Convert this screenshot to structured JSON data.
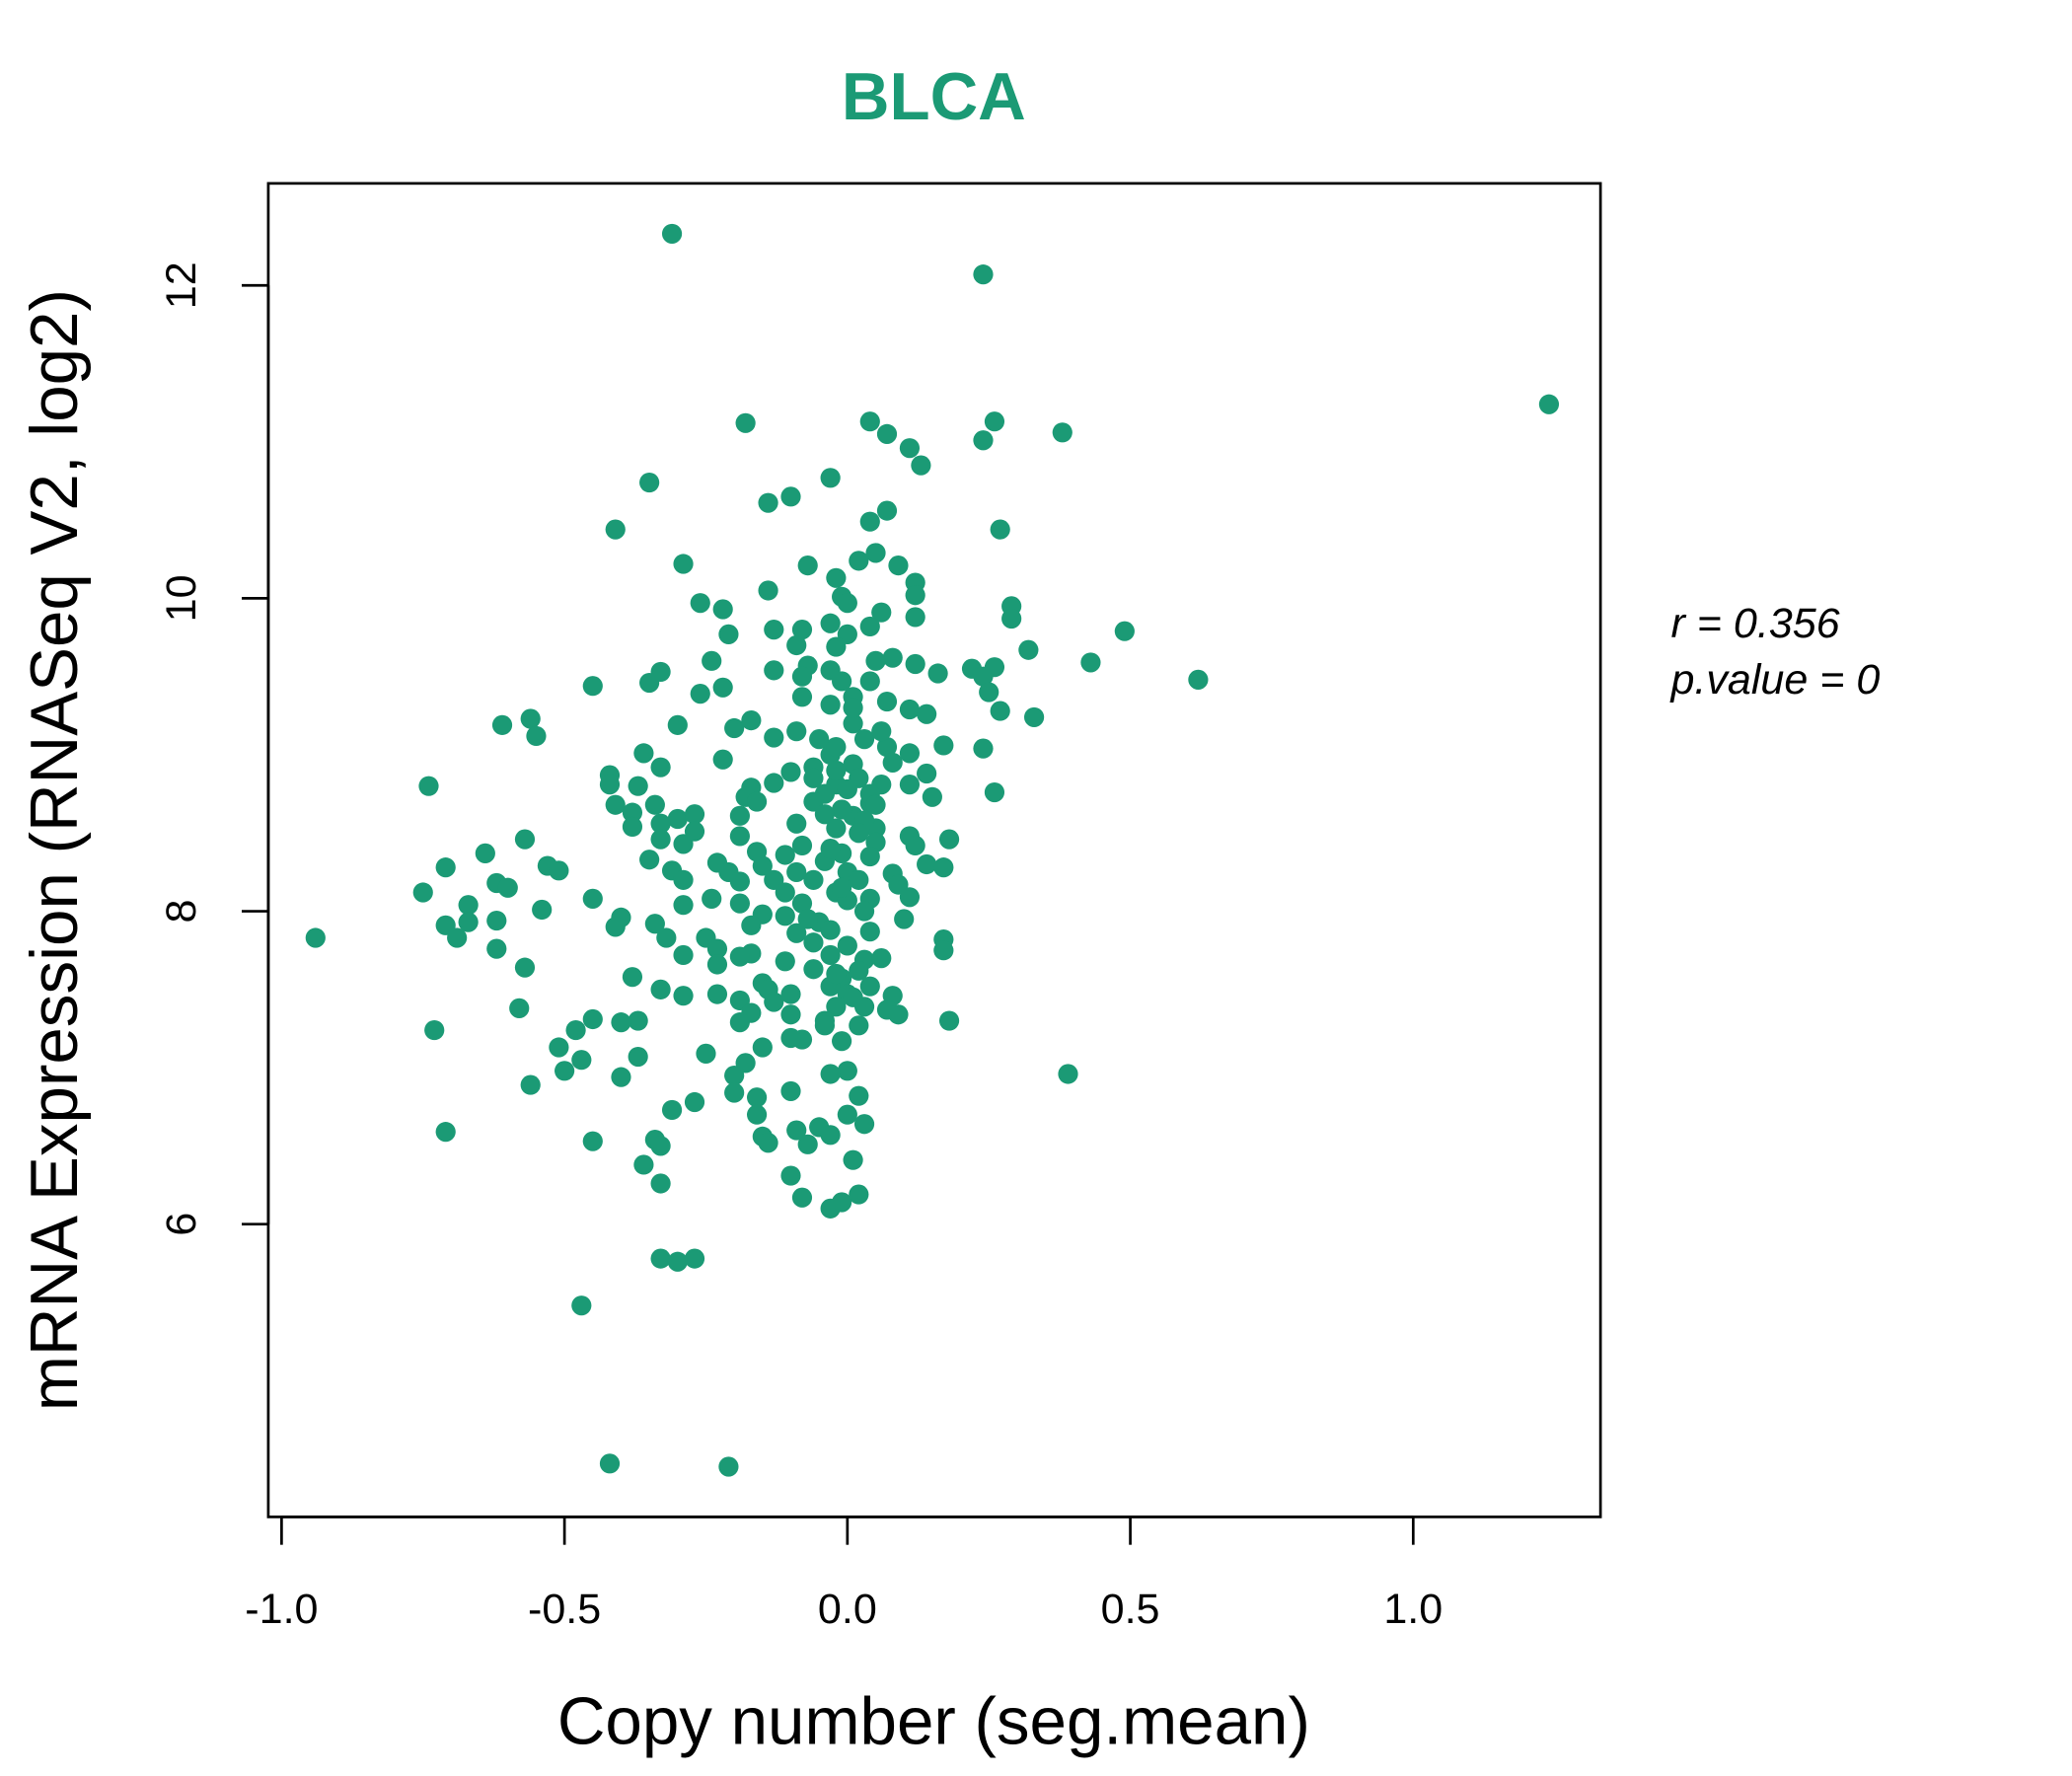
{
  "chart_data": {
    "type": "scatter",
    "title": "BLCA",
    "xlabel": "Copy number (seg.mean)",
    "ylabel": "mRNA Expression (RNASeq V2, log2)",
    "xlim": [
      -1.02,
      1.33
    ],
    "ylim": [
      4.3,
      12.65
    ],
    "xticks": [
      -1.0,
      -0.5,
      0.0,
      0.5,
      1.0
    ],
    "xtick_labels": [
      "-1.0",
      "-0.5",
      "0.0",
      "0.5",
      "1.0"
    ],
    "yticks": [
      6,
      8,
      10,
      12
    ],
    "ytick_labels": [
      "6",
      "8",
      "10",
      "12"
    ],
    "grid": false,
    "color": "#1b9a75",
    "annotation": {
      "r": "r = 0.356",
      "p": "p.value = 0"
    },
    "points": [
      [
        -0.31,
        12.33
      ],
      [
        0.24,
        12.07
      ],
      [
        1.24,
        11.24
      ],
      [
        -0.18,
        11.12
      ],
      [
        0.04,
        11.13
      ],
      [
        0.07,
        11.05
      ],
      [
        0.26,
        11.13
      ],
      [
        0.24,
        11.01
      ],
      [
        0.38,
        11.06
      ],
      [
        0.11,
        10.96
      ],
      [
        0.13,
        10.85
      ],
      [
        -0.35,
        10.74
      ],
      [
        -0.03,
        10.77
      ],
      [
        -0.1,
        10.65
      ],
      [
        -0.14,
        10.61
      ],
      [
        0.07,
        10.56
      ],
      [
        0.04,
        10.49
      ],
      [
        -0.41,
        10.44
      ],
      [
        0.27,
        10.44
      ],
      [
        0.05,
        10.29
      ],
      [
        0.02,
        10.24
      ],
      [
        -0.29,
        10.22
      ],
      [
        -0.07,
        10.21
      ],
      [
        0.09,
        10.21
      ],
      [
        -0.02,
        10.13
      ],
      [
        0.12,
        10.1
      ],
      [
        -0.14,
        10.05
      ],
      [
        -0.01,
        10.01
      ],
      [
        0.12,
        10.02
      ],
      [
        -0.26,
        9.97
      ],
      [
        -0.22,
        9.93
      ],
      [
        0.0,
        9.97
      ],
      [
        0.29,
        9.95
      ],
      [
        0.06,
        9.91
      ],
      [
        0.12,
        9.88
      ],
      [
        0.29,
        9.87
      ],
      [
        -0.03,
        9.84
      ],
      [
        0.04,
        9.82
      ],
      [
        -0.21,
        9.77
      ],
      [
        -0.13,
        9.8
      ],
      [
        -0.08,
        9.8
      ],
      [
        0.49,
        9.79
      ],
      [
        0.0,
        9.77
      ],
      [
        -0.09,
        9.7
      ],
      [
        -0.02,
        9.69
      ],
      [
        0.32,
        9.67
      ],
      [
        0.08,
        9.62
      ],
      [
        0.05,
        9.6
      ],
      [
        0.12,
        9.58
      ],
      [
        -0.24,
        9.6
      ],
      [
        -0.07,
        9.57
      ],
      [
        -0.13,
        9.54
      ],
      [
        0.22,
        9.55
      ],
      [
        0.26,
        9.56
      ],
      [
        0.43,
        9.59
      ],
      [
        -0.03,
        9.54
      ],
      [
        0.16,
        9.52
      ],
      [
        -0.33,
        9.53
      ],
      [
        -0.35,
        9.46
      ],
      [
        -0.08,
        9.5
      ],
      [
        0.24,
        9.5
      ],
      [
        0.62,
        9.48
      ],
      [
        -0.45,
        9.44
      ],
      [
        -0.22,
        9.43
      ],
      [
        -0.01,
        9.47
      ],
      [
        0.04,
        9.47
      ],
      [
        0.25,
        9.4
      ],
      [
        -0.26,
        9.39
      ],
      [
        -0.08,
        9.37
      ],
      [
        0.01,
        9.37
      ],
      [
        0.07,
        9.34
      ],
      [
        -0.03,
        9.32
      ],
      [
        0.11,
        9.29
      ],
      [
        0.27,
        9.28
      ],
      [
        0.14,
        9.26
      ],
      [
        0.33,
        9.24
      ],
      [
        -0.61,
        9.19
      ],
      [
        -0.56,
        9.23
      ],
      [
        -0.3,
        9.19
      ],
      [
        -0.17,
        9.22
      ],
      [
        -0.2,
        9.17
      ],
      [
        0.01,
        9.2
      ],
      [
        -0.55,
        9.12
      ],
      [
        -0.13,
        9.11
      ],
      [
        -0.09,
        9.15
      ],
      [
        0.17,
        9.06
      ],
      [
        0.24,
        9.04
      ],
      [
        0.07,
        9.05
      ],
      [
        -0.36,
        9.01
      ],
      [
        -0.22,
        8.97
      ],
      [
        -0.03,
        9.0
      ],
      [
        0.11,
        9.01
      ],
      [
        -0.33,
        8.92
      ],
      [
        -0.06,
        8.92
      ],
      [
        -0.42,
        8.87
      ],
      [
        -0.1,
        8.89
      ],
      [
        0.01,
        8.94
      ],
      [
        0.14,
        8.88
      ],
      [
        -0.74,
        8.8
      ],
      [
        -0.42,
        8.81
      ],
      [
        -0.13,
        8.82
      ],
      [
        -0.17,
        8.79
      ],
      [
        -0.02,
        8.81
      ],
      [
        0.11,
        8.81
      ],
      [
        0.06,
        8.81
      ],
      [
        -0.37,
        8.8
      ],
      [
        -0.18,
        8.73
      ],
      [
        0.26,
        8.76
      ],
      [
        0.15,
        8.73
      ],
      [
        -0.04,
        8.75
      ],
      [
        -0.34,
        8.68
      ],
      [
        -0.41,
        8.68
      ],
      [
        -0.16,
        8.7
      ],
      [
        -0.06,
        8.7
      ],
      [
        0.04,
        8.69
      ],
      [
        -0.19,
        8.61
      ],
      [
        -0.38,
        8.63
      ],
      [
        -0.3,
        8.59
      ],
      [
        -0.27,
        8.62
      ],
      [
        0.01,
        8.61
      ],
      [
        -0.09,
        8.56
      ],
      [
        -0.38,
        8.54
      ],
      [
        -0.33,
        8.56
      ],
      [
        -0.02,
        8.53
      ],
      [
        0.05,
        8.53
      ],
      [
        -0.27,
        8.51
      ],
      [
        -0.19,
        8.48
      ],
      [
        0.11,
        8.48
      ],
      [
        -0.33,
        8.46
      ],
      [
        0.18,
        8.46
      ],
      [
        -0.57,
        8.46
      ],
      [
        -0.29,
        8.43
      ],
      [
        -0.08,
        8.42
      ],
      [
        0.05,
        8.44
      ],
      [
        0.12,
        8.42
      ],
      [
        -0.64,
        8.37
      ],
      [
        -0.16,
        8.38
      ],
      [
        -0.35,
        8.33
      ],
      [
        -0.11,
        8.36
      ],
      [
        -0.01,
        8.37
      ],
      [
        -0.23,
        8.31
      ],
      [
        -0.15,
        8.29
      ],
      [
        -0.04,
        8.32
      ],
      [
        0.14,
        8.3
      ],
      [
        0.17,
        8.28
      ],
      [
        -0.53,
        8.29
      ],
      [
        -0.51,
        8.26
      ],
      [
        -0.71,
        8.28
      ],
      [
        -0.31,
        8.26
      ],
      [
        -0.21,
        8.25
      ],
      [
        -0.09,
        8.25
      ],
      [
        0.0,
        8.25
      ],
      [
        0.08,
        8.24
      ],
      [
        -0.29,
        8.2
      ],
      [
        -0.19,
        8.19
      ],
      [
        -0.13,
        8.2
      ],
      [
        -0.06,
        8.2
      ],
      [
        0.02,
        8.2
      ],
      [
        0.09,
        8.17
      ],
      [
        -0.62,
        8.18
      ],
      [
        -0.6,
        8.15
      ],
      [
        -0.75,
        8.12
      ],
      [
        -0.11,
        8.12
      ],
      [
        -0.02,
        8.12
      ],
      [
        0.11,
        8.09
      ],
      [
        -0.45,
        8.08
      ],
      [
        -0.24,
        8.08
      ],
      [
        0.04,
        8.08
      ],
      [
        -0.19,
        8.05
      ],
      [
        -0.29,
        8.04
      ],
      [
        -0.67,
        8.04
      ],
      [
        -0.08,
        8.05
      ],
      [
        0.0,
        8.07
      ],
      [
        -0.54,
        8.01
      ],
      [
        -0.15,
        7.98
      ],
      [
        -0.11,
        7.97
      ],
      [
        0.1,
        7.95
      ],
      [
        -0.4,
        7.96
      ],
      [
        -0.62,
        7.94
      ],
      [
        -0.05,
        7.93
      ],
      [
        -0.71,
        7.91
      ],
      [
        -0.67,
        7.93
      ],
      [
        -0.34,
        7.92
      ],
      [
        -0.41,
        7.9
      ],
      [
        -0.17,
        7.91
      ],
      [
        -0.03,
        7.88
      ],
      [
        0.04,
        7.87
      ],
      [
        -0.09,
        7.86
      ],
      [
        -0.32,
        7.83
      ],
      [
        -0.94,
        7.83
      ],
      [
        -0.69,
        7.83
      ],
      [
        -0.25,
        7.83
      ],
      [
        -0.06,
        7.8
      ],
      [
        0.17,
        7.82
      ],
      [
        -0.23,
        7.76
      ],
      [
        -0.62,
        7.76
      ],
      [
        -0.17,
        7.73
      ],
      [
        0.0,
        7.78
      ],
      [
        0.17,
        7.75
      ],
      [
        -0.29,
        7.72
      ],
      [
        -0.19,
        7.71
      ],
      [
        -0.03,
        7.72
      ],
      [
        0.03,
        7.69
      ],
      [
        -0.11,
        7.68
      ],
      [
        -0.23,
        7.66
      ],
      [
        -0.06,
        7.63
      ],
      [
        -0.57,
        7.64
      ],
      [
        0.02,
        7.62
      ],
      [
        -0.38,
        7.58
      ],
      [
        -0.01,
        7.57
      ],
      [
        -0.15,
        7.54
      ],
      [
        0.04,
        7.52
      ],
      [
        -0.03,
        7.52
      ],
      [
        -0.33,
        7.5
      ],
      [
        -0.14,
        7.5
      ],
      [
        -0.29,
        7.46
      ],
      [
        0.0,
        7.47
      ],
      [
        -0.1,
        7.47
      ],
      [
        0.08,
        7.46
      ],
      [
        -0.23,
        7.47
      ],
      [
        -0.19,
        7.43
      ],
      [
        -0.13,
        7.42
      ],
      [
        -0.02,
        7.39
      ],
      [
        -0.58,
        7.38
      ],
      [
        0.03,
        7.39
      ],
      [
        0.07,
        7.37
      ],
      [
        0.09,
        7.34
      ],
      [
        -0.1,
        7.34
      ],
      [
        -0.17,
        7.35
      ],
      [
        -0.37,
        7.3
      ],
      [
        -0.45,
        7.31
      ],
      [
        0.18,
        7.3
      ],
      [
        -0.19,
        7.29
      ],
      [
        -0.04,
        7.3
      ],
      [
        -0.4,
        7.29
      ],
      [
        -0.48,
        7.24
      ],
      [
        -0.73,
        7.24
      ],
      [
        -0.04,
        7.27
      ],
      [
        0.02,
        7.27
      ],
      [
        -0.08,
        7.18
      ],
      [
        -0.1,
        7.19
      ],
      [
        -0.01,
        7.17
      ],
      [
        -0.51,
        7.13
      ],
      [
        -0.15,
        7.13
      ],
      [
        -0.25,
        7.09
      ],
      [
        -0.37,
        7.07
      ],
      [
        -0.47,
        7.05
      ],
      [
        -0.18,
        7.03
      ],
      [
        -0.5,
        6.98
      ],
      [
        0.39,
        6.96
      ],
      [
        0.0,
        6.98
      ],
      [
        -0.03,
        6.96
      ],
      [
        -0.2,
        6.95
      ],
      [
        -0.4,
        6.94
      ],
      [
        -0.56,
        6.89
      ],
      [
        -0.2,
        6.84
      ],
      [
        -0.1,
        6.85
      ],
      [
        0.02,
        6.82
      ],
      [
        -0.16,
        6.81
      ],
      [
        -0.27,
        6.78
      ],
      [
        -0.31,
        6.73
      ],
      [
        -0.16,
        6.7
      ],
      [
        0.0,
        6.7
      ],
      [
        0.03,
        6.64
      ],
      [
        -0.09,
        6.6
      ],
      [
        -0.05,
        6.62
      ],
      [
        -0.03,
        6.57
      ],
      [
        -0.71,
        6.59
      ],
      [
        -0.15,
        6.56
      ],
      [
        -0.14,
        6.52
      ],
      [
        -0.34,
        6.54
      ],
      [
        -0.45,
        6.53
      ],
      [
        -0.33,
        6.5
      ],
      [
        -0.07,
        6.51
      ],
      [
        0.01,
        6.41
      ],
      [
        -0.36,
        6.38
      ],
      [
        -0.1,
        6.31
      ],
      [
        -0.33,
        6.26
      ],
      [
        0.02,
        6.19
      ],
      [
        -0.08,
        6.17
      ],
      [
        -0.01,
        6.14
      ],
      [
        -0.03,
        6.1
      ],
      [
        -0.33,
        5.78
      ],
      [
        -0.3,
        5.76
      ],
      [
        -0.27,
        5.78
      ],
      [
        -0.47,
        5.48
      ],
      [
        -0.42,
        4.47
      ],
      [
        -0.21,
        4.45
      ],
      [
        -0.02,
        8.9
      ],
      [
        0.02,
        8.85
      ],
      [
        0.04,
        8.75
      ],
      [
        -0.01,
        8.65
      ],
      [
        0.03,
        8.58
      ],
      [
        -0.04,
        8.62
      ],
      [
        0.05,
        8.68
      ],
      [
        0.0,
        8.78
      ],
      [
        0.03,
        9.1
      ],
      [
        -0.02,
        9.05
      ],
      [
        0.06,
        9.15
      ],
      [
        0.01,
        9.3
      ],
      [
        -0.05,
        9.1
      ],
      [
        0.08,
        8.95
      ],
      [
        -0.06,
        8.85
      ],
      [
        0.02,
        8.5
      ],
      [
        -0.03,
        8.4
      ],
      [
        0.04,
        8.35
      ],
      [
        -0.01,
        8.15
      ],
      [
        0.06,
        7.7
      ],
      [
        -0.02,
        7.6
      ],
      [
        0.01,
        7.45
      ],
      [
        -0.07,
        7.95
      ],
      [
        0.03,
        8.0
      ]
    ]
  }
}
